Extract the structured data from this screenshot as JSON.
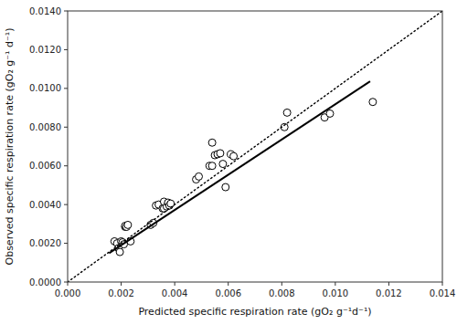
{
  "chart_data": {
    "type": "scatter",
    "xlabel": "Predicted specific respiration rate (gO₂ g⁻¹d⁻¹)",
    "ylabel": "Observed specific respiration rate (gO₂ g⁻¹ d⁻¹)",
    "xlim": [
      0.0,
      0.014
    ],
    "ylim": [
      0.0,
      0.014
    ],
    "xticks": [
      {
        "value": 0.0,
        "label": "0.000"
      },
      0.002,
      0.004,
      0.006,
      0.008,
      {
        "value": 0.01,
        "label": "0.010"
      },
      0.012,
      0.014
    ],
    "yticks": [
      {
        "value": 0.0,
        "label": "0.0000"
      },
      {
        "value": 0.002,
        "label": "0.0020"
      },
      {
        "value": 0.004,
        "label": "0.0040"
      },
      {
        "value": 0.006,
        "label": "0.0060"
      },
      {
        "value": 0.008,
        "label": "0.0080"
      },
      {
        "value": 0.01,
        "label": "0.0100"
      },
      {
        "value": 0.012,
        "label": "0.0120"
      },
      {
        "value": 0.014,
        "label": "0.0140"
      }
    ],
    "grid": false,
    "series": [
      {
        "type": "scatter",
        "marker": "open-circle",
        "color": "black",
        "x": [
          0.00175,
          0.00185,
          0.0019,
          0.00195,
          0.002,
          0.00205,
          0.0021,
          0.00215,
          0.00215,
          0.0022,
          0.00225,
          0.00235,
          0.0031,
          0.0032,
          0.0033,
          0.0034,
          0.00355,
          0.0036,
          0.0036,
          0.0037,
          0.00375,
          0.0038,
          0.00385,
          0.0048,
          0.0049,
          0.0053,
          0.0054,
          0.0054,
          0.0055,
          0.0056,
          0.0057,
          0.0058,
          0.0059,
          0.0061,
          0.0062,
          0.0081,
          0.0082,
          0.0096,
          0.0098,
          0.0114
        ],
        "values": [
          0.0021,
          0.002,
          0.00175,
          0.00155,
          0.0021,
          0.00205,
          0.00195,
          0.00285,
          0.0029,
          0.00285,
          0.00295,
          0.0021,
          0.00295,
          0.00305,
          0.00395,
          0.004,
          0.0038,
          0.0038,
          0.00415,
          0.0039,
          0.0041,
          0.00395,
          0.00405,
          0.0053,
          0.00545,
          0.006,
          0.0072,
          0.006,
          0.00655,
          0.0066,
          0.00665,
          0.0061,
          0.0049,
          0.0066,
          0.0065,
          0.008,
          0.00875,
          0.0085,
          0.0087,
          0.0093
        ]
      },
      {
        "type": "line",
        "line_style": "dotted",
        "color": "black",
        "x": [
          0.0,
          0.014
        ],
        "values": [
          0.0,
          0.014
        ]
      },
      {
        "type": "line",
        "line_style": "solid",
        "color": "black",
        "x": [
          0.00155,
          0.0113
        ],
        "values": [
          0.0014905,
          0.010363
        ]
      }
    ]
  }
}
